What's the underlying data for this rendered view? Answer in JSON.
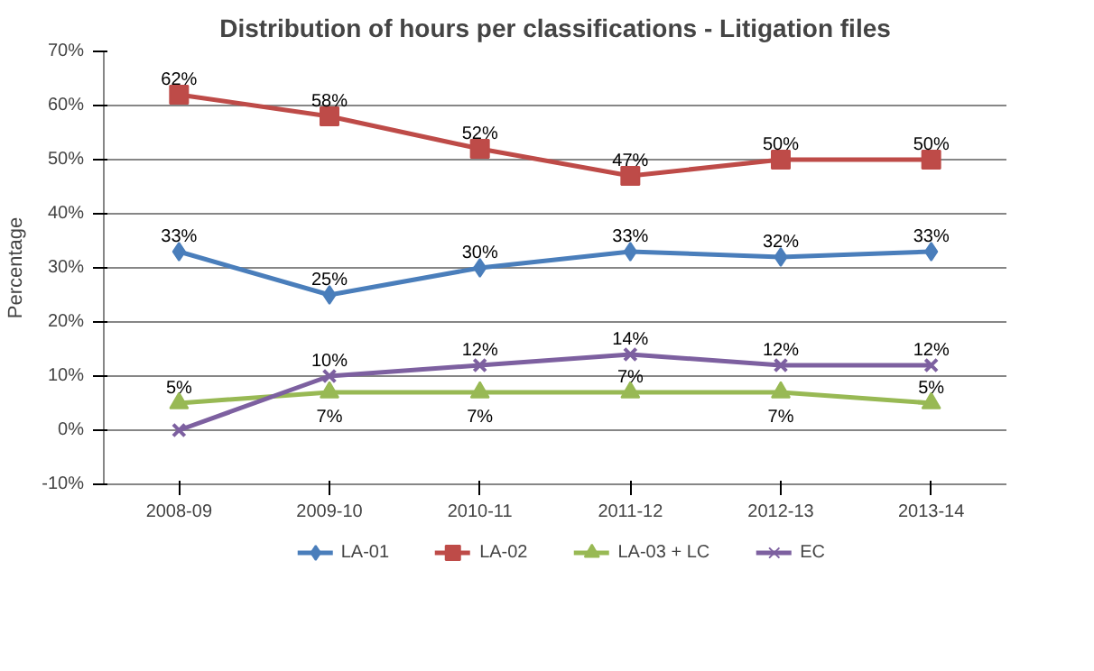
{
  "chart_data": {
    "type": "line",
    "title": "Distribution of hours per classifications - Litigation files",
    "ylabel": "Percentage",
    "categories": [
      "2008-09",
      "2009-10",
      "2010-11",
      "2011-12",
      "2012-13",
      "2013-14"
    ],
    "ylim": [
      -10,
      70
    ],
    "yticks": [
      {
        "value": -10,
        "label": "-10%"
      },
      {
        "value": 0,
        "label": "0%"
      },
      {
        "value": 10,
        "label": "10%"
      },
      {
        "value": 20,
        "label": "20%"
      },
      {
        "value": 30,
        "label": "30%"
      },
      {
        "value": 40,
        "label": "40%"
      },
      {
        "value": 50,
        "label": "50%"
      },
      {
        "value": 60,
        "label": "60%"
      },
      {
        "value": 70,
        "label": "70%"
      }
    ],
    "grid": "y",
    "legend": "bottom",
    "line_style": "solid",
    "series": [
      {
        "name": "LA-01",
        "color": "#4a7ebb",
        "marker": "diamond",
        "values": [
          33,
          25,
          30,
          33,
          32,
          33
        ],
        "value_labels": [
          "33%",
          "25%",
          "30%",
          "33%",
          "32%",
          "33%"
        ]
      },
      {
        "name": "LA-02",
        "color": "#be4b48",
        "marker": "square",
        "values": [
          62,
          58,
          52,
          47,
          50,
          50
        ],
        "value_labels": [
          "62%",
          "58%",
          "52%",
          "47%",
          "50%",
          "50%"
        ]
      },
      {
        "name": "LA-03 + LC",
        "color": "#98b954",
        "marker": "triangle",
        "values": [
          5,
          7,
          7,
          7,
          7,
          5
        ],
        "value_labels": [
          "5%",
          "7%",
          "7%",
          "7%",
          "7%",
          "5%"
        ]
      },
      {
        "name": "EC",
        "color": "#7d60a0",
        "marker": "cross",
        "values": [
          0,
          10,
          12,
          14,
          12,
          12
        ],
        "value_labels": [
          null,
          "10%",
          "12%",
          "14%",
          "12%",
          "12%"
        ]
      }
    ]
  }
}
